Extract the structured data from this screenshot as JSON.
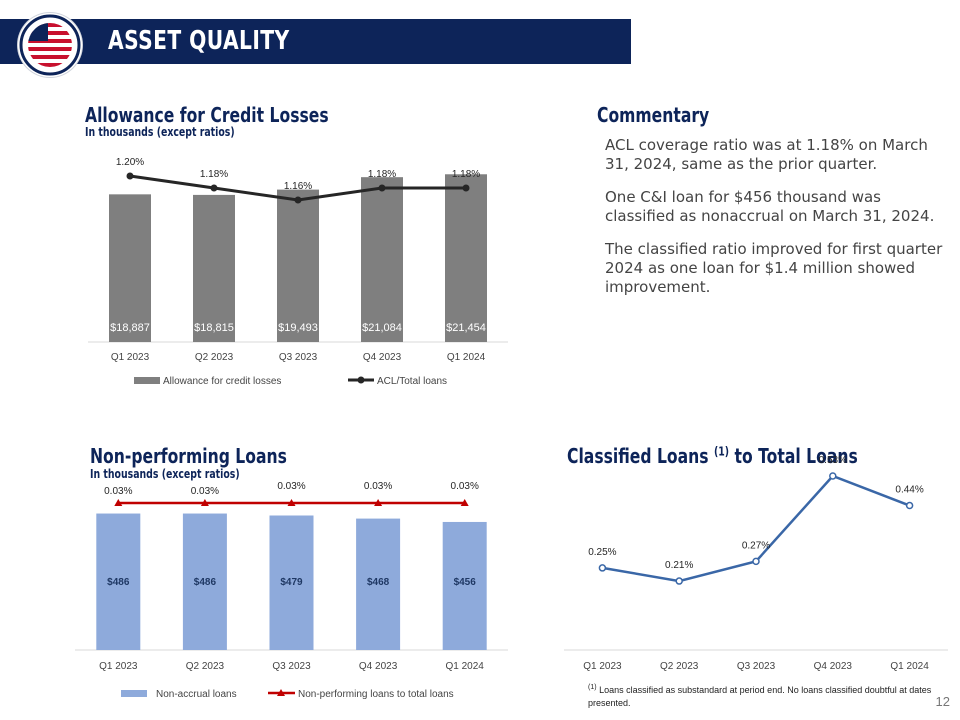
{
  "header": {
    "title": "ASSET QUALITY"
  },
  "acl_section": {
    "title": "Allowance for Credit Losses",
    "subtitle": "In thousands  (except ratios)"
  },
  "commentary": {
    "title": "Commentary",
    "paragraphs": [
      "ACL coverage ratio was at 1.18% on March 31, 2024, same as the prior quarter.",
      "One C&I loan for $456 thousand was classified as nonaccrual on March 31, 2024.",
      "The classified ratio improved for first quarter 2024 as one loan for $1.4 million showed improvement."
    ]
  },
  "npl_section": {
    "title": "Non-performing Loans",
    "subtitle": "In thousands  (except ratios)"
  },
  "classified_section": {
    "title_main": "Classified Loans ",
    "title_sup": "(1)",
    "title_end": " to Total Loans"
  },
  "footnote": {
    "marker": "(1)",
    "text": "Loans classified as substandard at period end. No loans classified doubtful at dates presented."
  },
  "page_number": "12",
  "colors": {
    "navy": "#0d2459",
    "acl_bar": "#7f7f7f",
    "npl_bar": "#8eaadb",
    "npl_line": "#c00000",
    "classified_line": "#3a67a7"
  },
  "chart_data": [
    {
      "id": "acl",
      "type": "bar+line",
      "categories": [
        "Q1 2023",
        "Q2 2023",
        "Q3 2023",
        "Q4 2023",
        "Q1 2024"
      ],
      "series": [
        {
          "name": "Allowance for credit losses",
          "type": "bar",
          "values": [
            18887,
            18815,
            19493,
            21084,
            21454
          ],
          "labels": [
            "$18,887",
            "$18,815",
            "$19,493",
            "$21,084",
            "$21,454"
          ]
        },
        {
          "name": "ACL/Total loans",
          "type": "line",
          "values": [
            1.2,
            1.18,
            1.16,
            1.18,
            1.18
          ],
          "labels": [
            "1.20%",
            "1.18%",
            "1.16%",
            "1.18%",
            "1.18%"
          ]
        }
      ],
      "legend": "bottom"
    },
    {
      "id": "npl",
      "type": "bar+line",
      "categories": [
        "Q1 2023",
        "Q2 2023",
        "Q3 2023",
        "Q4 2023",
        "Q1 2024"
      ],
      "series": [
        {
          "name": "Non-accrual loans",
          "type": "bar",
          "values": [
            486,
            486,
            479,
            468,
            456
          ],
          "labels": [
            "$486",
            "$486",
            "$479",
            "$468",
            "$456"
          ]
        },
        {
          "name": "Non-performing loans to total loans",
          "type": "line",
          "values": [
            0.03,
            0.03,
            0.03,
            0.03,
            0.03
          ],
          "labels": [
            "0.03%",
            "0.03%",
            "0.03%",
            "0.03%",
            "0.03%"
          ]
        }
      ],
      "legend": "bottom"
    },
    {
      "id": "classified",
      "type": "line",
      "categories": [
        "Q1 2023",
        "Q2 2023",
        "Q3 2023",
        "Q4 2023",
        "Q1 2024"
      ],
      "series": [
        {
          "type": "line",
          "values": [
            0.25,
            0.21,
            0.27,
            0.53,
            0.44
          ],
          "labels": [
            "0.25%",
            "0.21%",
            "0.27%",
            "0.53%",
            "0.44%"
          ]
        }
      ]
    }
  ]
}
